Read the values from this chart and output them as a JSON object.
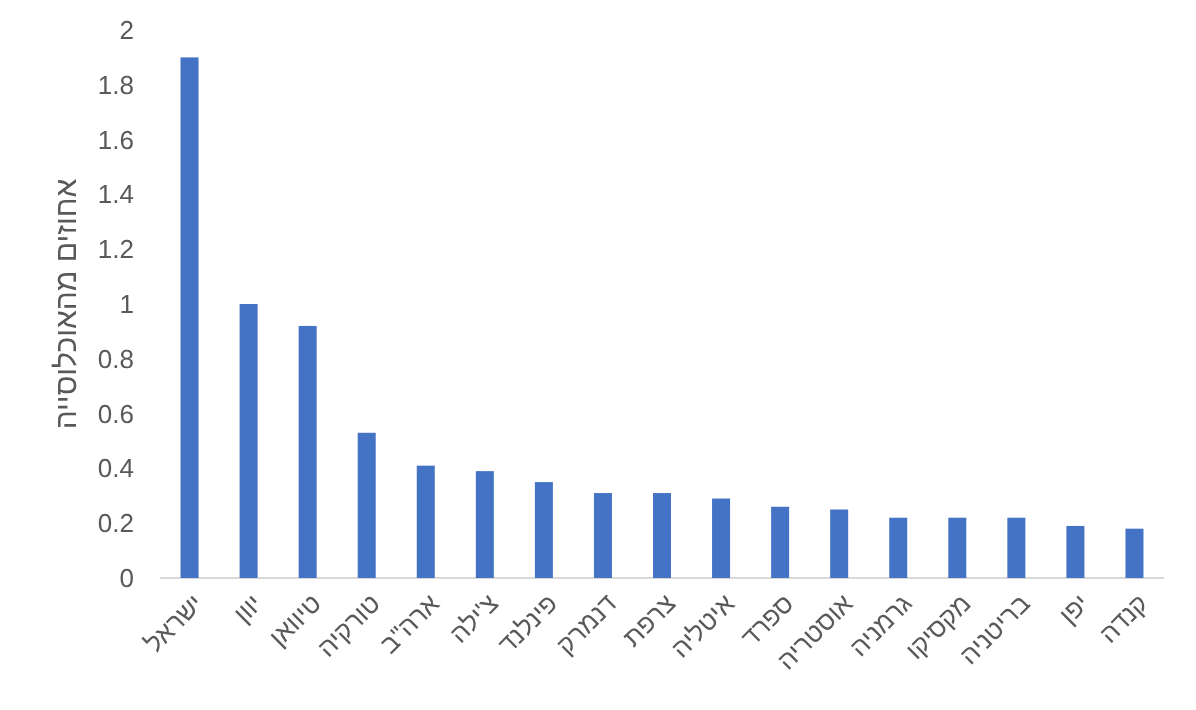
{
  "chart_data": {
    "type": "bar",
    "ylabel": "אחוזים מהאוכלוסייה",
    "categories": [
      "ישראל",
      "יוון",
      "טיוואן",
      "טורקיה",
      "ארה\"ב",
      "צ'ילה",
      "פינלנד",
      "דנמרק",
      "צרפת",
      "איטליה",
      "ספרד",
      "אוסטריה",
      "גרמניה",
      "מקסיקו",
      "בריטניה",
      "יפן",
      "קנדה"
    ],
    "values": [
      1.9,
      1.0,
      0.92,
      0.53,
      0.41,
      0.39,
      0.35,
      0.31,
      0.31,
      0.29,
      0.26,
      0.25,
      0.22,
      0.22,
      0.22,
      0.19,
      0.18
    ],
    "color": "#4472c4",
    "ylim": [
      0,
      2
    ],
    "yticks": [
      0,
      0.2,
      0.4,
      0.6,
      0.8,
      1,
      1.2,
      1.4,
      1.6,
      1.8,
      2
    ]
  }
}
